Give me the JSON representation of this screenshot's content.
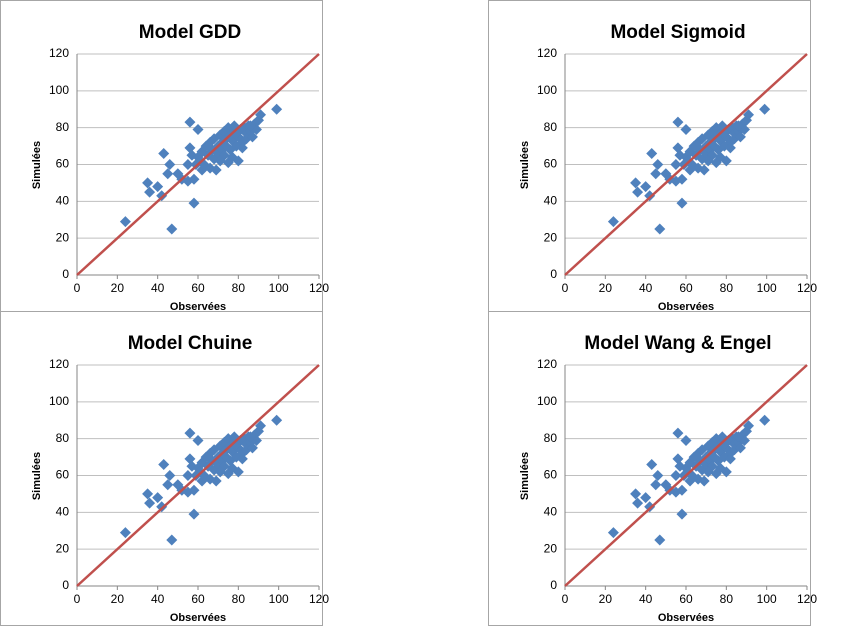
{
  "chart_data": [
    {
      "type": "scatter",
      "title": "Model GDD",
      "x_label": "Observées",
      "y_label": "Simulées",
      "color": "#4f81bd",
      "grid": true,
      "xlim": [
        0,
        120
      ],
      "ylim": [
        0,
        120
      ],
      "xticks": [
        0,
        20,
        40,
        60,
        80,
        100,
        120
      ],
      "yticks": [
        0,
        20,
        40,
        60,
        80,
        100,
        120
      ],
      "reference_line": {
        "x": [
          0,
          120
        ],
        "y": [
          0,
          120
        ],
        "color": "#c0504d"
      },
      "x": [
        24,
        35,
        36,
        40,
        42,
        43,
        45,
        46,
        47,
        50,
        52,
        55,
        55,
        56,
        56,
        57,
        58,
        58,
        59,
        60,
        60,
        61,
        62,
        63,
        64,
        65,
        66,
        66,
        67,
        68,
        68,
        69,
        70,
        70,
        71,
        72,
        72,
        73,
        73,
        74,
        74,
        75,
        75,
        76,
        76,
        77,
        77,
        78,
        78,
        79,
        80,
        80,
        81,
        82,
        83,
        84,
        84,
        85,
        86,
        87,
        88,
        89,
        90,
        91,
        99,
        62,
        65,
        71,
        79,
        82,
        86
      ],
      "y": [
        29,
        50,
        45,
        48,
        43,
        66,
        55,
        60,
        25,
        55,
        52,
        51,
        60,
        83,
        69,
        65,
        39,
        52,
        60,
        79,
        64,
        62,
        67,
        60,
        70,
        65,
        58,
        72,
        68,
        63,
        74,
        57,
        70,
        66,
        76,
        72,
        68,
        65,
        78,
        74,
        70,
        61,
        80,
        76,
        68,
        73,
        64,
        78,
        81,
        70,
        75,
        62,
        79,
        72,
        80,
        77,
        74,
        81,
        78,
        75,
        82,
        79,
        84,
        87,
        90,
        57,
        70,
        62,
        77,
        69,
        81
      ]
    },
    {
      "type": "scatter",
      "title": "Model Sigmoid",
      "x_label": "Observées",
      "y_label": "Simulées",
      "color": "#4f81bd",
      "grid": true,
      "xlim": [
        0,
        120
      ],
      "ylim": [
        0,
        120
      ],
      "xticks": [
        0,
        20,
        40,
        60,
        80,
        100,
        120
      ],
      "yticks": [
        0,
        20,
        40,
        60,
        80,
        100,
        120
      ],
      "reference_line": {
        "x": [
          0,
          120
        ],
        "y": [
          0,
          120
        ],
        "color": "#c0504d"
      },
      "x": [
        24,
        35,
        36,
        40,
        42,
        43,
        45,
        46,
        47,
        50,
        52,
        55,
        55,
        56,
        56,
        57,
        58,
        58,
        59,
        60,
        60,
        61,
        62,
        63,
        64,
        65,
        66,
        66,
        67,
        68,
        68,
        69,
        70,
        70,
        71,
        72,
        72,
        73,
        73,
        74,
        74,
        75,
        75,
        76,
        76,
        77,
        77,
        78,
        78,
        79,
        80,
        80,
        81,
        82,
        83,
        84,
        84,
        85,
        86,
        87,
        88,
        89,
        90,
        91,
        99,
        62,
        65,
        71,
        79,
        82,
        86
      ],
      "y": [
        29,
        50,
        45,
        48,
        43,
        66,
        55,
        60,
        25,
        55,
        52,
        51,
        60,
        83,
        69,
        65,
        39,
        52,
        60,
        79,
        64,
        62,
        67,
        60,
        70,
        65,
        58,
        72,
        68,
        63,
        74,
        57,
        70,
        66,
        76,
        72,
        68,
        65,
        78,
        74,
        70,
        61,
        80,
        76,
        68,
        73,
        64,
        78,
        81,
        70,
        75,
        62,
        79,
        72,
        80,
        77,
        74,
        81,
        78,
        75,
        82,
        79,
        84,
        87,
        90,
        57,
        70,
        62,
        77,
        69,
        81
      ]
    },
    {
      "type": "scatter",
      "title": "Model Chuine",
      "x_label": "Observées",
      "y_label": "Simulées",
      "color": "#4f81bd",
      "grid": true,
      "xlim": [
        0,
        120
      ],
      "ylim": [
        0,
        120
      ],
      "xticks": [
        0,
        20,
        40,
        60,
        80,
        100,
        120
      ],
      "yticks": [
        0,
        20,
        40,
        60,
        80,
        100,
        120
      ],
      "reference_line": {
        "x": [
          0,
          120
        ],
        "y": [
          0,
          120
        ],
        "color": "#c0504d"
      },
      "x": [
        24,
        35,
        36,
        40,
        42,
        43,
        45,
        46,
        47,
        50,
        52,
        55,
        55,
        56,
        56,
        57,
        58,
        58,
        59,
        60,
        60,
        61,
        62,
        63,
        64,
        65,
        66,
        66,
        67,
        68,
        68,
        69,
        70,
        70,
        71,
        72,
        72,
        73,
        73,
        74,
        74,
        75,
        75,
        76,
        76,
        77,
        77,
        78,
        78,
        79,
        80,
        80,
        81,
        82,
        83,
        84,
        84,
        85,
        86,
        87,
        88,
        89,
        90,
        91,
        99,
        62,
        65,
        71,
        79,
        82,
        86
      ],
      "y": [
        29,
        50,
        45,
        48,
        43,
        66,
        55,
        60,
        25,
        55,
        52,
        51,
        60,
        83,
        69,
        65,
        39,
        52,
        60,
        79,
        64,
        62,
        67,
        60,
        70,
        65,
        58,
        72,
        68,
        63,
        74,
        57,
        70,
        66,
        76,
        72,
        68,
        65,
        78,
        74,
        70,
        61,
        80,
        76,
        68,
        73,
        64,
        78,
        81,
        70,
        75,
        62,
        79,
        72,
        80,
        77,
        74,
        81,
        78,
        75,
        82,
        79,
        84,
        87,
        90,
        57,
        70,
        62,
        77,
        69,
        81
      ]
    },
    {
      "type": "scatter",
      "title": "Model Wang & Engel",
      "x_label": "Observées",
      "y_label": "Simulées",
      "color": "#4f81bd",
      "grid": true,
      "xlim": [
        0,
        120
      ],
      "ylim": [
        0,
        120
      ],
      "xticks": [
        0,
        20,
        40,
        60,
        80,
        100,
        120
      ],
      "yticks": [
        0,
        20,
        40,
        60,
        80,
        100,
        120
      ],
      "reference_line": {
        "x": [
          0,
          120
        ],
        "y": [
          0,
          120
        ],
        "color": "#c0504d"
      },
      "x": [
        24,
        35,
        36,
        40,
        42,
        43,
        45,
        46,
        47,
        50,
        52,
        55,
        55,
        56,
        56,
        57,
        58,
        58,
        59,
        60,
        60,
        61,
        62,
        63,
        64,
        65,
        66,
        66,
        67,
        68,
        68,
        69,
        70,
        70,
        71,
        72,
        72,
        73,
        73,
        74,
        74,
        75,
        75,
        76,
        76,
        77,
        77,
        78,
        78,
        79,
        80,
        80,
        81,
        82,
        83,
        84,
        84,
        85,
        86,
        87,
        88,
        89,
        90,
        91,
        99,
        62,
        65,
        71,
        79,
        82,
        86
      ],
      "y": [
        29,
        50,
        45,
        48,
        43,
        66,
        55,
        60,
        25,
        55,
        52,
        51,
        60,
        83,
        69,
        65,
        39,
        52,
        60,
        79,
        64,
        62,
        67,
        60,
        70,
        65,
        58,
        72,
        68,
        63,
        74,
        57,
        70,
        66,
        76,
        72,
        68,
        65,
        78,
        74,
        70,
        61,
        80,
        76,
        68,
        73,
        64,
        78,
        81,
        70,
        75,
        62,
        79,
        72,
        80,
        77,
        74,
        81,
        78,
        75,
        82,
        79,
        84,
        87,
        90,
        57,
        70,
        62,
        77,
        69,
        81
      ]
    }
  ]
}
